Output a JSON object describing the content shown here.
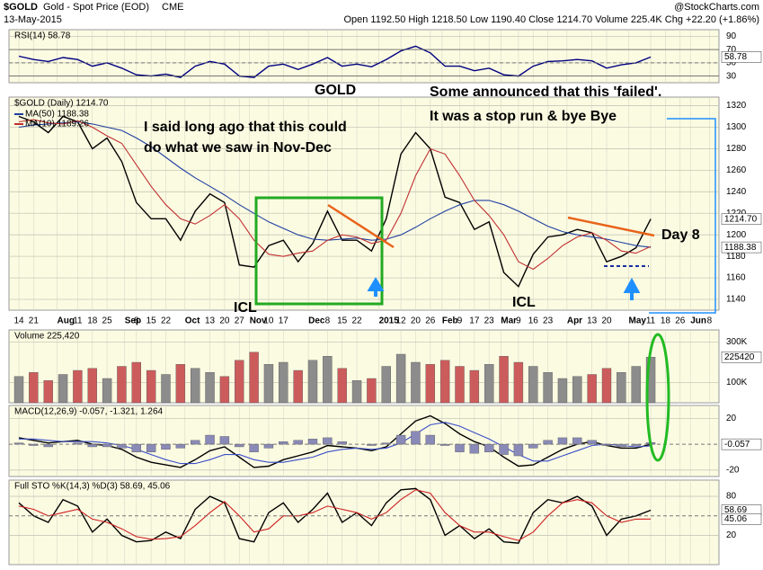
{
  "header": {
    "symbol": "$GOLD",
    "name": "Gold - Spot Price (EOD)",
    "exchange": "CME",
    "date": "13-May-2015",
    "quote": "Open 1192.50 High 1218.50 Low 1190.40 Close 1214.70 Volume 225.4K Chg +22.20 (+1.86%)",
    "source": "@StockCharts.com"
  },
  "chart_data": [
    {
      "type": "line",
      "title": "RSI(14) 58.78",
      "ylim": [
        20,
        100
      ],
      "yticks": [
        30,
        50,
        70,
        90
      ],
      "grid": true,
      "readouts": [
        "58.78"
      ],
      "series": [
        {
          "color": "#000080",
          "values": [
            60,
            55,
            52,
            58,
            55,
            45,
            50,
            42,
            32,
            30,
            33,
            28,
            45,
            52,
            48,
            30,
            28,
            45,
            48,
            40,
            48,
            58,
            45,
            48,
            44,
            55,
            68,
            75,
            65,
            45,
            45,
            38,
            42,
            32,
            30,
            45,
            52,
            53,
            55,
            53,
            42,
            47,
            50,
            58.78
          ]
        }
      ]
    },
    {
      "type": "line",
      "title": "$GOLD (Daily) 1214.70",
      "ylim": [
        1130,
        1328
      ],
      "yticks": [
        1140,
        1160,
        1180,
        1200,
        1220,
        1240,
        1260,
        1280,
        1300,
        1320
      ],
      "grid": true,
      "readouts": [
        "1214.70",
        "1188.38"
      ],
      "xticks": [
        {
          "value": 0,
          "label": "14"
        },
        {
          "value": 1,
          "label": "21"
        },
        {
          "value": 2.6,
          "label": "Aug"
        },
        {
          "value": 4,
          "label": "11"
        },
        {
          "value": 5,
          "label": "18"
        },
        {
          "value": 6,
          "label": "25"
        },
        {
          "value": 7.2,
          "label": "Sep"
        },
        {
          "value": 8,
          "label": "8"
        },
        {
          "value": 9,
          "label": "15"
        },
        {
          "value": 10,
          "label": "22"
        },
        {
          "value": 11.3,
          "label": "Oct"
        },
        {
          "value": 13,
          "label": "13"
        },
        {
          "value": 14,
          "label": "20"
        },
        {
          "value": 15,
          "label": "27"
        },
        {
          "value": 15.7,
          "label": "Nov"
        },
        {
          "value": 17,
          "label": "10"
        },
        {
          "value": 18,
          "label": "17"
        },
        {
          "value": 19.7,
          "label": "Dec"
        },
        {
          "value": 21,
          "label": "8"
        },
        {
          "value": 22,
          "label": "15"
        },
        {
          "value": 23,
          "label": "22"
        },
        {
          "value": 24.5,
          "label": "2015"
        },
        {
          "value": 26,
          "label": "12"
        },
        {
          "value": 27,
          "label": "20"
        },
        {
          "value": 28,
          "label": "26"
        },
        {
          "value": 28.8,
          "label": "Feb"
        },
        {
          "value": 30,
          "label": "9"
        },
        {
          "value": 31,
          "label": "17"
        },
        {
          "value": 32,
          "label": "23"
        },
        {
          "value": 32.8,
          "label": "Mar"
        },
        {
          "value": 34,
          "label": "9"
        },
        {
          "value": 35,
          "label": "16"
        },
        {
          "value": 36,
          "label": "23"
        },
        {
          "value": 37.3,
          "label": "Apr"
        },
        {
          "value": 39,
          "label": "13"
        },
        {
          "value": 40,
          "label": "20"
        },
        {
          "value": 41.5,
          "label": "May"
        },
        {
          "value": 43,
          "label": "11"
        },
        {
          "value": 44,
          "label": "18"
        },
        {
          "value": 45,
          "label": "26"
        },
        {
          "value": 45.7,
          "label": "Jun"
        },
        {
          "value": 47,
          "label": "8"
        }
      ],
      "annotations": [
        "GOLD",
        "I said long ago that this could",
        "do what we saw in Nov-Dec",
        "Some announced that this 'failed'.",
        "It was a stop run & bye Bye",
        "Day 8",
        "ICL",
        "ICL"
      ],
      "series": [
        {
          "color": "#000000",
          "values": [
            1310,
            1305,
            1295,
            1310,
            1305,
            1280,
            1290,
            1268,
            1230,
            1215,
            1215,
            1195,
            1222,
            1238,
            1230,
            1172,
            1170,
            1190,
            1195,
            1175,
            1192,
            1222,
            1195,
            1195,
            1185,
            1215,
            1275,
            1295,
            1280,
            1235,
            1230,
            1205,
            1212,
            1165,
            1152,
            1182,
            1198,
            1200,
            1205,
            1202,
            1175,
            1180,
            1188,
            1214.7
          ]
        },
        {
          "name": "MA(50) 1188.38",
          "color": "#1f3f9f",
          "values": [
            1300,
            1302,
            1303,
            1304,
            1305,
            1303,
            1300,
            1297,
            1290,
            1282,
            1272,
            1262,
            1253,
            1245,
            1237,
            1228,
            1220,
            1212,
            1206,
            1200,
            1196,
            1195,
            1196,
            1197,
            1195,
            1196,
            1200,
            1207,
            1215,
            1222,
            1228,
            1232,
            1232,
            1228,
            1222,
            1215,
            1208,
            1203,
            1200,
            1198,
            1196,
            1193,
            1190,
            1188.38
          ]
        },
        {
          "name": "MA(10) 1189.26",
          "color": "#c03030",
          "values": [
            1305,
            1307,
            1304,
            1303,
            1306,
            1300,
            1292,
            1285,
            1265,
            1245,
            1228,
            1215,
            1210,
            1218,
            1228,
            1215,
            1195,
            1182,
            1180,
            1183,
            1185,
            1195,
            1200,
            1198,
            1192,
            1195,
            1220,
            1255,
            1280,
            1275,
            1255,
            1232,
            1218,
            1200,
            1175,
            1168,
            1178,
            1190,
            1198,
            1202,
            1195,
            1185,
            1183,
            1189.26
          ]
        }
      ]
    },
    {
      "type": "bar",
      "title": "Volume 225,420",
      "ylim": [
        0,
        360000
      ],
      "yticks": [
        {
          "value": 100000,
          "label": "100K"
        },
        {
          "value": 300000,
          "label": "300K"
        }
      ],
      "grid": true,
      "readouts": [
        "225420"
      ],
      "colors": {
        "up": "#8c8c8c",
        "down": "#cc5c5c"
      },
      "series": [
        {
          "values": [
            130000,
            150000,
            110000,
            140000,
            160000,
            170000,
            120000,
            180000,
            200000,
            160000,
            140000,
            190000,
            170000,
            150000,
            130000,
            210000,
            250000,
            190000,
            200000,
            160000,
            210000,
            230000,
            170000,
            110000,
            120000,
            180000,
            240000,
            200000,
            190000,
            210000,
            180000,
            160000,
            190000,
            230000,
            200000,
            180000,
            150000,
            120000,
            130000,
            140000,
            170000,
            150000,
            180000,
            225420
          ]
        }
      ]
    },
    {
      "type": "line",
      "title": "MACD(12,26,9) -0.057, -1.321, 1.264",
      "ylim": [
        -25,
        30
      ],
      "yticks": [
        -20,
        20
      ],
      "grid": true,
      "readouts": [
        "-0.057"
      ],
      "series": [
        {
          "color": "#000000",
          "values": [
            5,
            3,
            1,
            2,
            3,
            0,
            -1,
            -4,
            -10,
            -14,
            -16,
            -18,
            -12,
            -5,
            -2,
            -10,
            -18,
            -17,
            -12,
            -9,
            -6,
            -1,
            -2,
            -3,
            -5,
            -2,
            8,
            18,
            22,
            16,
            8,
            2,
            -2,
            -10,
            -17,
            -16,
            -10,
            -4,
            0,
            2,
            -1,
            -3,
            -3,
            -0.057
          ]
        },
        {
          "color": "#3b4fc8",
          "values": [
            4,
            4,
            3,
            2,
            2,
            2,
            1,
            -1,
            -4,
            -8,
            -12,
            -15,
            -15,
            -12,
            -8,
            -8,
            -12,
            -14,
            -14,
            -12,
            -10,
            -6,
            -4,
            -3,
            -4,
            -3,
            1,
            8,
            15,
            17,
            14,
            9,
            4,
            -2,
            -8,
            -13,
            -13,
            -9,
            -5,
            -1,
            0,
            -1,
            -2,
            -1.321
          ]
        },
        {
          "type": "bar",
          "color": "#8a8ab8",
          "values": [
            1,
            -1,
            -2,
            0,
            1,
            -2,
            -2,
            -3,
            -6,
            -6,
            -4,
            -3,
            3,
            7,
            6,
            -2,
            -6,
            -3,
            2,
            3,
            4,
            5,
            2,
            0,
            -1,
            1,
            7,
            10,
            7,
            -1,
            -6,
            -7,
            -6,
            -8,
            -9,
            -3,
            3,
            5,
            5,
            3,
            -1,
            -2,
            -1,
            1.264
          ]
        }
      ]
    },
    {
      "type": "line",
      "title": "Full STO %K(14,3) %D(3) 58.69, 45.06",
      "ylim": [
        -25,
        105
      ],
      "yticks": [
        20,
        80
      ],
      "grid": true,
      "readouts": [
        "58.69",
        "45.06"
      ],
      "series": [
        {
          "color": "#000000",
          "values": [
            70,
            50,
            40,
            75,
            65,
            25,
            45,
            20,
            10,
            12,
            25,
            15,
            60,
            80,
            70,
            15,
            10,
            55,
            70,
            40,
            60,
            85,
            40,
            55,
            35,
            70,
            90,
            92,
            75,
            20,
            35,
            15,
            30,
            10,
            8,
            55,
            75,
            70,
            80,
            65,
            20,
            45,
            50,
            58.69
          ]
        },
        {
          "color": "#d02020",
          "values": [
            65,
            60,
            50,
            55,
            60,
            45,
            40,
            30,
            18,
            14,
            15,
            18,
            35,
            55,
            72,
            50,
            25,
            30,
            50,
            50,
            55,
            65,
            60,
            55,
            45,
            55,
            75,
            90,
            85,
            55,
            35,
            25,
            25,
            18,
            12,
            25,
            50,
            70,
            75,
            70,
            50,
            40,
            45,
            45.06
          ]
        }
      ]
    }
  ]
}
